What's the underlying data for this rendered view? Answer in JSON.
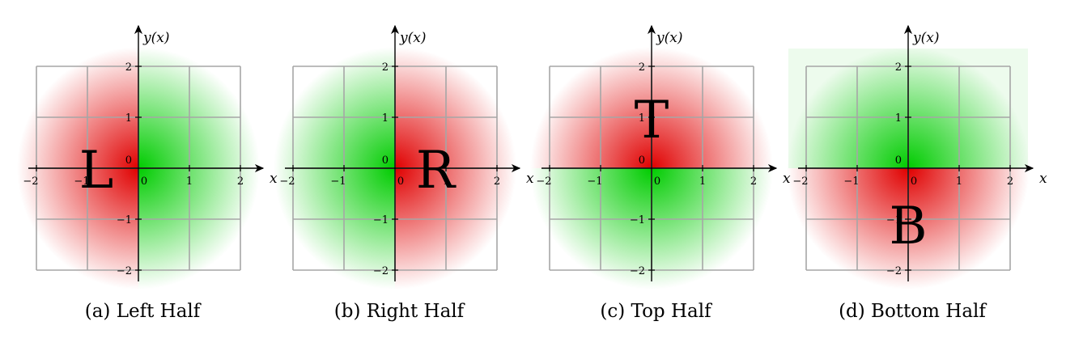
{
  "colors": {
    "red": "#e00000",
    "green": "#00cc00",
    "grid": "#a6a6a6",
    "axis": "#000000"
  },
  "axes": {
    "x_label": "x",
    "y_label": "y(x)",
    "x_ticks": [
      "−2",
      "−1",
      "0",
      "1",
      "2"
    ],
    "y_ticks": [
      "−2",
      "−1",
      "0",
      "1",
      "2"
    ],
    "range": [
      -2,
      2
    ]
  },
  "panels": [
    {
      "id": "left",
      "letter": "L",
      "caption": "(a) Left Half",
      "red_half": "left"
    },
    {
      "id": "right",
      "letter": "R",
      "caption": "(b) Right Half",
      "red_half": "right"
    },
    {
      "id": "top",
      "letter": "T",
      "caption": "(c) Top Half",
      "red_half": "top"
    },
    {
      "id": "bottom",
      "letter": "B",
      "caption": "(d) Bottom Half",
      "red_half": "bottom"
    }
  ]
}
